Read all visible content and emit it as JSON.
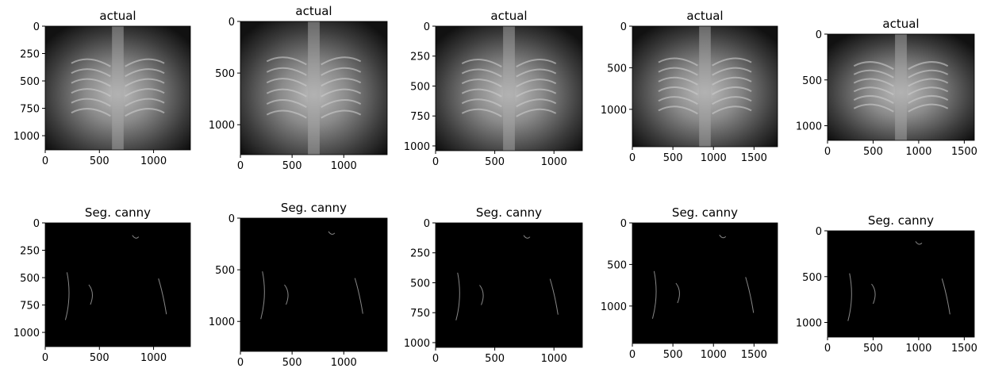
{
  "chart_data": [
    {
      "type": "image",
      "title": "actual",
      "xlim": [
        0,
        1340
      ],
      "ylim": [
        1130,
        0
      ],
      "xticks": [
        0,
        500,
        1000
      ],
      "yticks": [
        0,
        250,
        500,
        750,
        1000
      ]
    },
    {
      "type": "image",
      "title": "actual",
      "xlim": [
        0,
        1420
      ],
      "ylim": [
        1290,
        0
      ],
      "xticks": [
        0,
        500,
        1000
      ],
      "yticks": [
        0,
        500,
        1000
      ]
    },
    {
      "type": "image",
      "title": "actual",
      "xlim": [
        0,
        1240
      ],
      "ylim": [
        1040,
        0
      ],
      "xticks": [
        0,
        500,
        1000
      ],
      "yticks": [
        0,
        250,
        500,
        750,
        1000
      ]
    },
    {
      "type": "image",
      "title": "actual",
      "xlim": [
        0,
        1790
      ],
      "ylim": [
        1450,
        0
      ],
      "xticks": [
        0,
        500,
        1000,
        1500
      ],
      "yticks": [
        0,
        500,
        1000
      ]
    },
    {
      "type": "image",
      "title": "actual",
      "xlim": [
        0,
        1610
      ],
      "ylim": [
        1160,
        0
      ],
      "xticks": [
        0,
        500,
        1000,
        1500
      ],
      "yticks": [
        0,
        500,
        1000
      ]
    },
    {
      "type": "image",
      "title": "Seg. canny",
      "xlim": [
        0,
        1340
      ],
      "ylim": [
        1130,
        0
      ],
      "xticks": [
        0,
        500,
        1000
      ],
      "yticks": [
        0,
        250,
        500,
        750,
        1000
      ]
    },
    {
      "type": "image",
      "title": "Seg. canny",
      "xlim": [
        0,
        1420
      ],
      "ylim": [
        1290,
        0
      ],
      "xticks": [
        0,
        500,
        1000
      ],
      "yticks": [
        0,
        500,
        1000
      ]
    },
    {
      "type": "image",
      "title": "Seg. canny",
      "xlim": [
        0,
        1240
      ],
      "ylim": [
        1040,
        0
      ],
      "xticks": [
        0,
        500,
        1000
      ],
      "yticks": [
        0,
        250,
        500,
        750,
        1000
      ]
    },
    {
      "type": "image",
      "title": "Seg. canny",
      "xlim": [
        0,
        1790
      ],
      "ylim": [
        1450,
        0
      ],
      "xticks": [
        0,
        500,
        1000,
        1500
      ],
      "yticks": [
        0,
        500,
        1000
      ]
    },
    {
      "type": "image",
      "title": "Seg. canny",
      "xlim": [
        0,
        1610
      ],
      "ylim": [
        1160,
        0
      ],
      "xticks": [
        0,
        500,
        1000,
        1500
      ],
      "yticks": [
        0,
        500,
        1000
      ]
    }
  ]
}
